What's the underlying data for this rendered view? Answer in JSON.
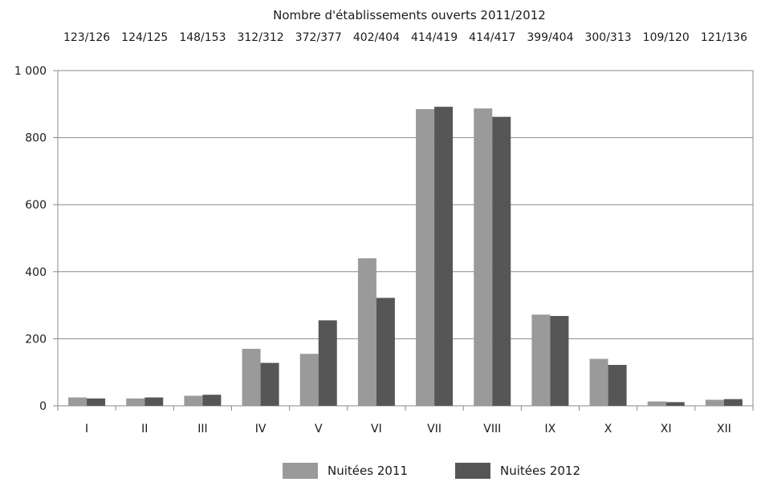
{
  "chart_data": {
    "type": "bar",
    "title": "Nombre d'établissements ouverts 2011/2012",
    "categories": [
      "I",
      "II",
      "III",
      "IV",
      "V",
      "VI",
      "VII",
      "VIII",
      "IX",
      "X",
      "XI",
      "XII"
    ],
    "top_labels": [
      "123/126",
      "124/125",
      "148/153",
      "312/312",
      "372/377",
      "402/404",
      "414/419",
      "414/417",
      "399/404",
      "300/313",
      "109/120",
      "121/136"
    ],
    "series": [
      {
        "name": "Nuitées 2011",
        "color": "#9a9a9a",
        "values": [
          25,
          22,
          30,
          170,
          155,
          440,
          885,
          887,
          272,
          140,
          13,
          18
        ]
      },
      {
        "name": "Nuitées 2012",
        "color": "#565656",
        "values": [
          22,
          25,
          33,
          128,
          255,
          322,
          892,
          862,
          268,
          122,
          11,
          20
        ]
      }
    ],
    "ylim": [
      0,
      1000
    ],
    "y_ticks": [
      0,
      200,
      400,
      600,
      800,
      1000
    ],
    "y_tick_labels": [
      "0",
      "200",
      "400",
      "600",
      "800",
      "1 000"
    ],
    "xlabel": "",
    "ylabel": "",
    "grid": true,
    "legend_position": "bottom"
  }
}
